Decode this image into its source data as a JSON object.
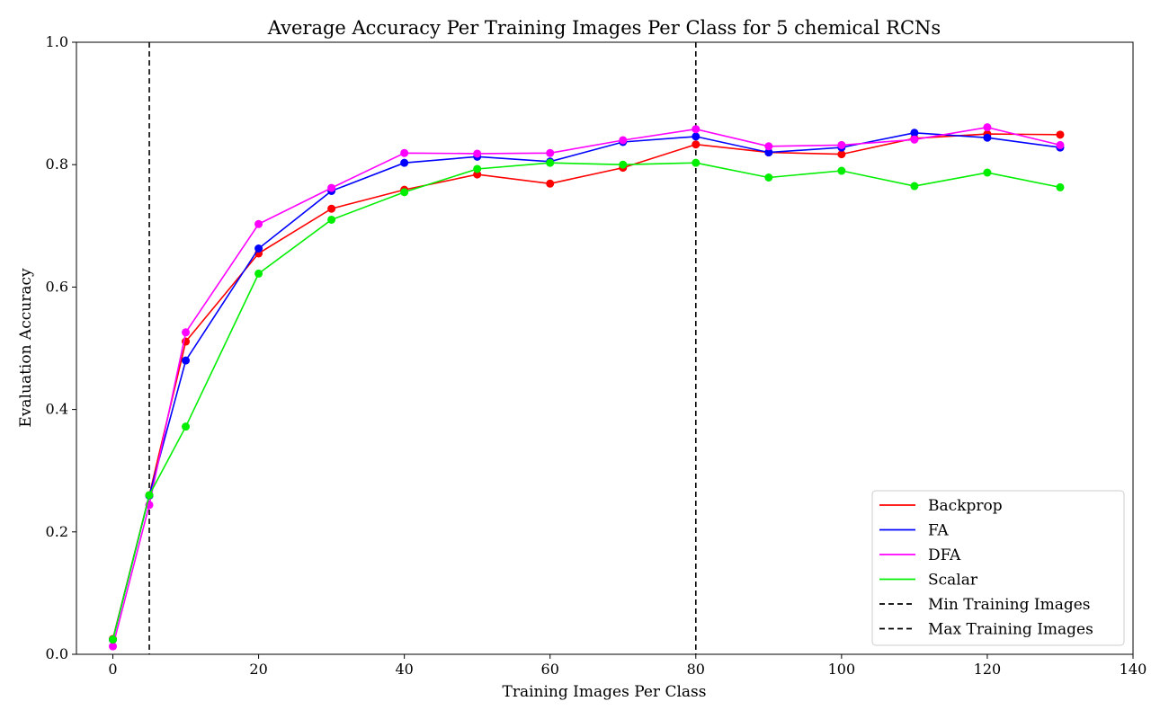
{
  "chart_data": {
    "type": "line",
    "title": "Average Accuracy Per Training Images Per Class for 5 chemical RCNs",
    "xlabel": "Training Images Per Class",
    "ylabel": "Evaluation Accuracy",
    "xlim": [
      -5,
      140
    ],
    "ylim": [
      0.0,
      1.0
    ],
    "xticks": [
      0,
      20,
      40,
      60,
      80,
      100,
      120,
      140
    ],
    "yticks": [
      0.0,
      0.2,
      0.4,
      0.6,
      0.8,
      1.0
    ],
    "xtick_labels": [
      "0",
      "20",
      "40",
      "60",
      "80",
      "100",
      "120",
      "140"
    ],
    "ytick_labels": [
      "0.0",
      "0.2",
      "0.4",
      "0.6",
      "0.8",
      "1.0"
    ],
    "grid": false,
    "legend_position": "bottom-right",
    "x": [
      0,
      5,
      10,
      20,
      30,
      40,
      50,
      60,
      70,
      80,
      90,
      100,
      110,
      120,
      130
    ],
    "series": [
      {
        "name": "Backprop",
        "color": "#ff0000",
        "values": [
          0.025,
          0.26,
          0.511,
          0.655,
          0.728,
          0.759,
          0.784,
          0.769,
          0.795,
          0.833,
          0.82,
          0.817,
          0.843,
          0.85,
          0.849
        ]
      },
      {
        "name": "FA",
        "color": "#0000ff",
        "values": [
          0.024,
          0.259,
          0.48,
          0.663,
          0.757,
          0.803,
          0.813,
          0.805,
          0.837,
          0.846,
          0.82,
          0.828,
          0.852,
          0.844,
          0.828
        ]
      },
      {
        "name": "DFA",
        "color": "#ff00ff",
        "values": [
          0.013,
          0.244,
          0.526,
          0.703,
          0.762,
          0.819,
          0.818,
          0.819,
          0.84,
          0.858,
          0.83,
          0.832,
          0.841,
          0.861,
          0.832
        ]
      },
      {
        "name": "Scalar",
        "color": "#00ee00",
        "values": [
          0.024,
          0.26,
          0.372,
          0.622,
          0.71,
          0.755,
          0.793,
          0.803,
          0.8,
          0.803,
          0.779,
          0.79,
          0.765,
          0.787,
          0.763
        ]
      }
    ],
    "reference_lines": [
      {
        "name": "Min Training Images",
        "x": 5,
        "color": "#000000",
        "style": "dashed"
      },
      {
        "name": "Max Training Images",
        "x": 80,
        "color": "#000000",
        "style": "dashed"
      }
    ]
  }
}
